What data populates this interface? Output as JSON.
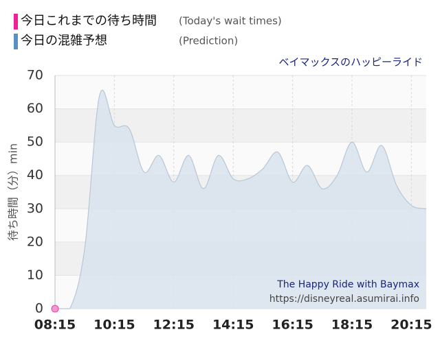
{
  "chart_data": {
    "type": "area",
    "subtitle": "ベイマックスのハッピーライド",
    "y_label": "待ち時間（分）min",
    "annotations": [
      "The Happy Ride with Baymax",
      "https://disneyreal.asumirai.info"
    ],
    "xlim": [
      495,
      1245
    ],
    "xticks": [
      {
        "value": 495,
        "label": "08:15"
      },
      {
        "value": 615,
        "label": "10:15"
      },
      {
        "value": 735,
        "label": "12:15"
      },
      {
        "value": 855,
        "label": "14:15"
      },
      {
        "value": 975,
        "label": "16:15"
      },
      {
        "value": 1095,
        "label": "18:15"
      },
      {
        "value": 1215,
        "label": "20:15"
      }
    ],
    "ylim": [
      0,
      70
    ],
    "yticks": [
      0,
      10,
      20,
      30,
      40,
      50,
      60,
      70
    ],
    "grid": true,
    "series": [
      {
        "name": "今日これまでの待ち時間",
        "name_en": "(Today's wait times)",
        "color": "#f0209a",
        "marker_color": "#f19ad0",
        "x": [
          495
        ],
        "values": [
          0
        ]
      },
      {
        "name": "今日の混雑予想",
        "name_en": "(Prediction)",
        "color": "#5b8fbf",
        "fill": "#d8e3ec",
        "line_color": "#b6c7d6",
        "x": [
          495,
          525,
          555,
          585,
          615,
          645,
          675,
          705,
          735,
          765,
          795,
          825,
          855,
          885,
          915,
          945,
          975,
          1005,
          1035,
          1065,
          1095,
          1125,
          1155,
          1185,
          1215,
          1245
        ],
        "values": [
          0,
          0,
          18,
          64,
          55,
          54,
          41,
          46,
          38,
          46,
          36,
          46,
          39,
          39,
          42,
          47,
          38,
          43,
          36,
          40,
          50,
          41,
          49,
          37,
          31,
          30
        ]
      }
    ]
  }
}
